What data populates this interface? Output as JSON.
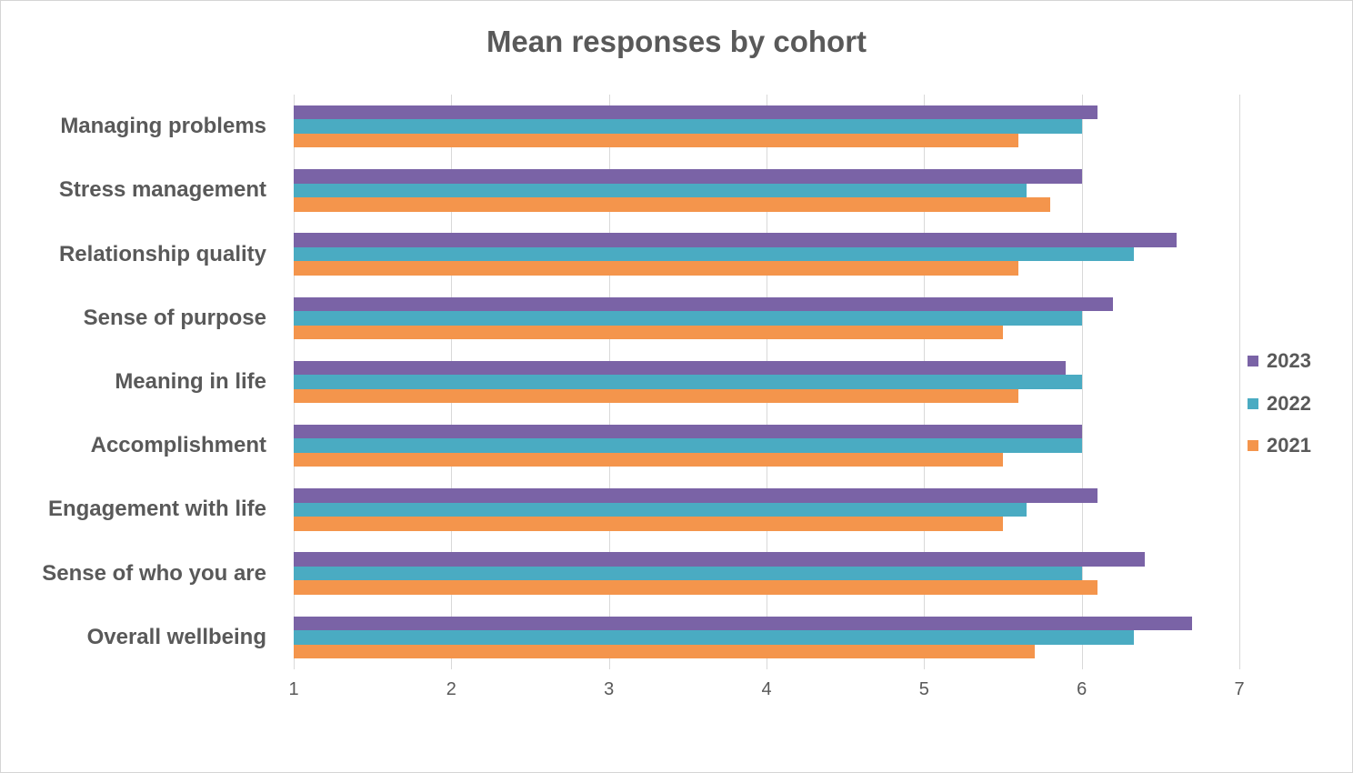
{
  "chart_data": {
    "type": "bar",
    "orientation": "horizontal",
    "title": "Mean responses by cohort",
    "categories": [
      "Managing problems",
      "Stress management",
      "Relationship quality",
      "Sense of purpose",
      "Meaning in life",
      "Accomplishment",
      "Engagement with life",
      "Sense of who you are",
      "Overall wellbeing"
    ],
    "series": [
      {
        "name": "2023",
        "color": "#7A63A6",
        "values": [
          6.1,
          6.0,
          6.6,
          6.2,
          5.9,
          6.0,
          6.1,
          6.4,
          6.7
        ]
      },
      {
        "name": "2022",
        "color": "#4AABC2",
        "values": [
          6.0,
          5.65,
          6.33,
          6.0,
          6.0,
          6.0,
          5.65,
          6.0,
          6.33
        ]
      },
      {
        "name": "2021",
        "color": "#F4954C",
        "values": [
          5.6,
          5.8,
          5.6,
          5.5,
          5.6,
          5.5,
          5.5,
          6.1,
          5.7
        ]
      }
    ],
    "x_axis": {
      "min": 1,
      "max": 7,
      "ticks": [
        "1",
        "2",
        "3",
        "4",
        "5",
        "6",
        "7"
      ]
    },
    "xlabel": "",
    "ylabel": "",
    "legend_position": "right",
    "grid": "vertical",
    "colors": {
      "text": "#595959",
      "gridline": "#d9d9d9",
      "background": "#ffffff",
      "frame_border": "#d5d5d5"
    }
  }
}
